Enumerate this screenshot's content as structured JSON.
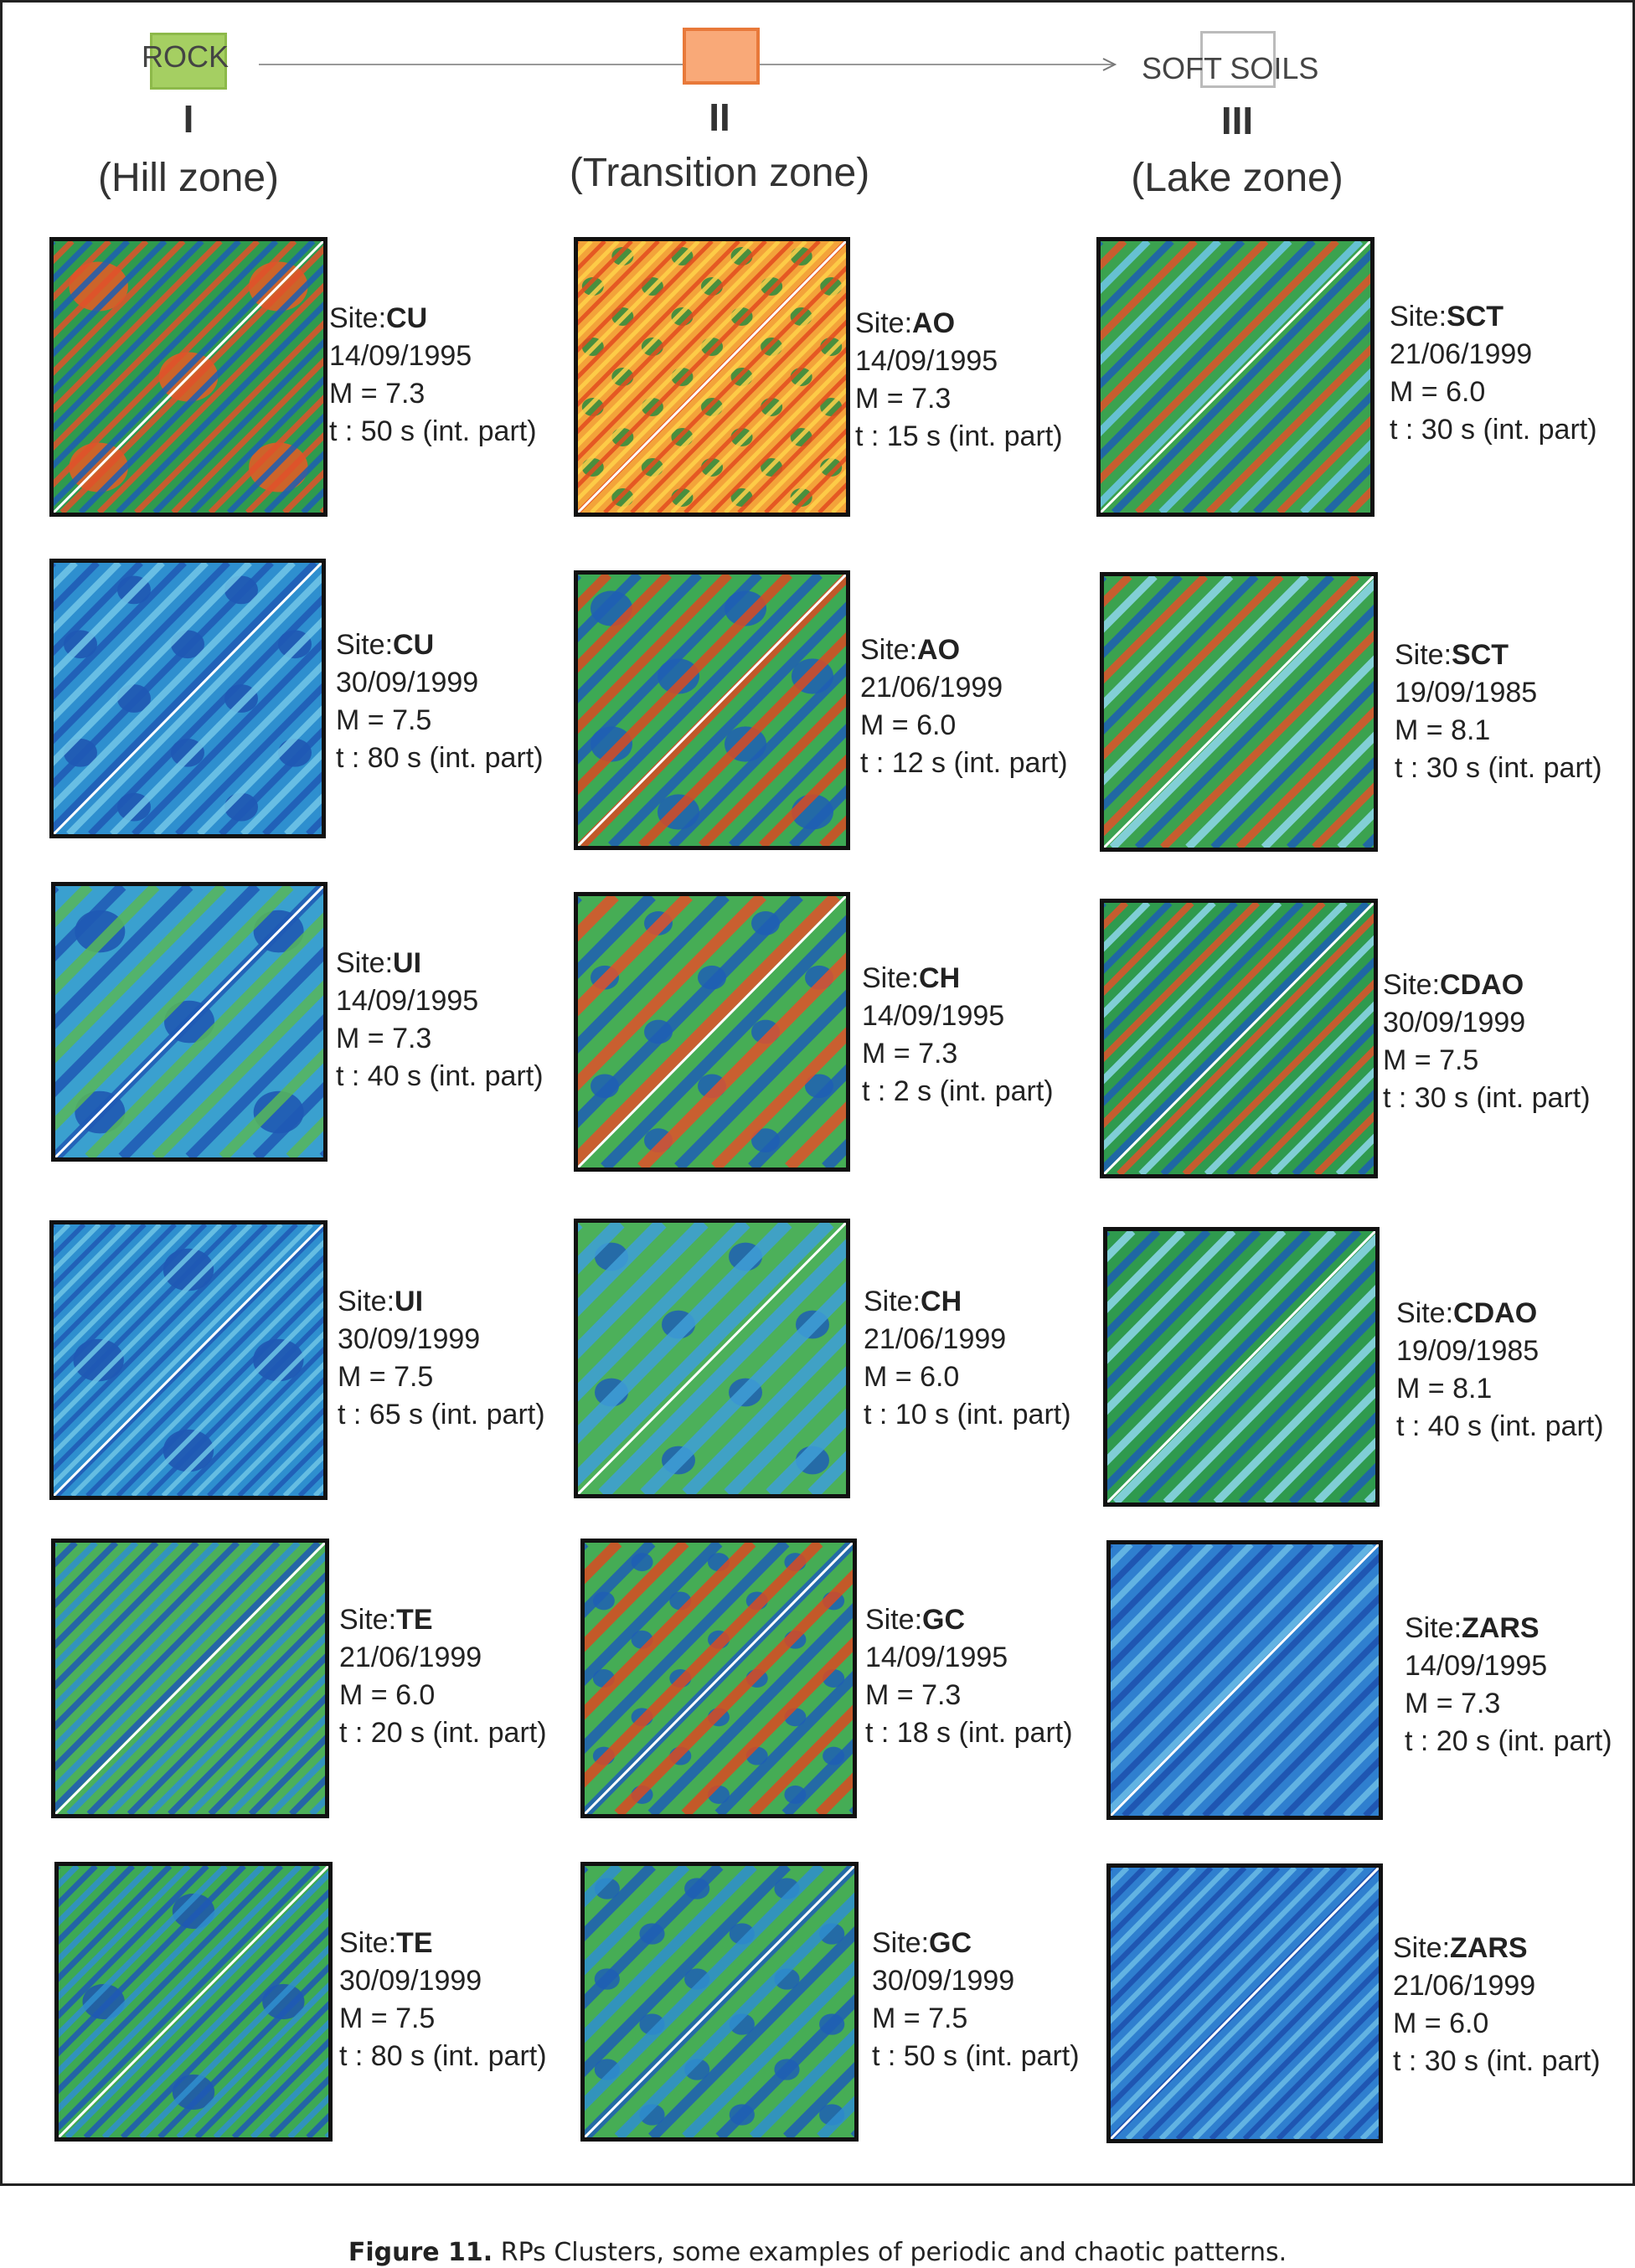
{
  "header": {
    "rock_label": "ROCK",
    "soft_label": "SOFT SOILS",
    "zones": [
      {
        "numeral": "I",
        "name": "(Hill zone)"
      },
      {
        "numeral": "II",
        "name": "(Transition zone)"
      },
      {
        "numeral": "III",
        "name": "(Lake zone)"
      }
    ],
    "colors": {
      "rock": "#a5cf62",
      "transition": "#f9a978",
      "soft": "#ffffff"
    }
  },
  "site_prefix": "Site:",
  "panels": [
    {
      "site": "CU",
      "date": "14/09/1995",
      "mag": "M = 7.3",
      "time": "t : 50 s (int. part)"
    },
    {
      "site": "AO",
      "date": "14/09/1995",
      "mag": "M = 7.3",
      "time": "t : 15 s (int. part)"
    },
    {
      "site": "SCT",
      "date": "21/06/1999",
      "mag": "M = 6.0",
      "time": "t : 30 s (int. part)"
    },
    {
      "site": "CU",
      "date": "30/09/1999",
      "mag": "M = 7.5",
      "time": "t : 80 s (int. part)"
    },
    {
      "site": "AO",
      "date": "21/06/1999",
      "mag": "M = 6.0",
      "time": "t : 12 s (int. part)"
    },
    {
      "site": "SCT",
      "date": "19/09/1985",
      "mag": "M = 8.1",
      "time": "t : 30 s (int. part)"
    },
    {
      "site": "UI",
      "date": "14/09/1995",
      "mag": "M = 7.3",
      "time": "t : 40 s (int. part)"
    },
    {
      "site": "CH",
      "date": "14/09/1995",
      "mag": "M = 7.3",
      "time": "t : 2 s (int. part)"
    },
    {
      "site": "CDAO",
      "date": "30/09/1999",
      "mag": "M = 7.5",
      "time": "t : 30 s (int. part)"
    },
    {
      "site": "UI",
      "date": "30/09/1999",
      "mag": "M = 7.5",
      "time": "t : 65 s (int. part)"
    },
    {
      "site": "CH",
      "date": "21/06/1999",
      "mag": "M = 6.0",
      "time": "t : 10 s (int. part)"
    },
    {
      "site": "CDAO",
      "date": "19/09/1985",
      "mag": "M = 8.1",
      "time": "t : 40 s (int. part)"
    },
    {
      "site": "TE",
      "date": "21/06/1999",
      "mag": "M = 6.0",
      "time": "t : 20 s (int. part)"
    },
    {
      "site": "GC",
      "date": "14/09/1995",
      "mag": "M = 7.3",
      "time": "t : 18 s (int. part)"
    },
    {
      "site": "ZARS",
      "date": "14/09/1995",
      "mag": "M = 7.3",
      "time": "t : 20 s (int. part)"
    },
    {
      "site": "TE",
      "date": "30/09/1999",
      "mag": "M = 7.5",
      "time": "t : 80 s (int. part)"
    },
    {
      "site": "GC",
      "date": "30/09/1999",
      "mag": "M = 7.5",
      "time": "t : 50 s (int. part)"
    },
    {
      "site": "ZARS",
      "date": "21/06/1999",
      "mag": "M = 6.0",
      "time": "t : 30 s (int. part)"
    }
  ],
  "caption": {
    "number": "Figure 11.",
    "text": " RPs Clusters, some examples of periodic and chaotic patterns."
  }
}
